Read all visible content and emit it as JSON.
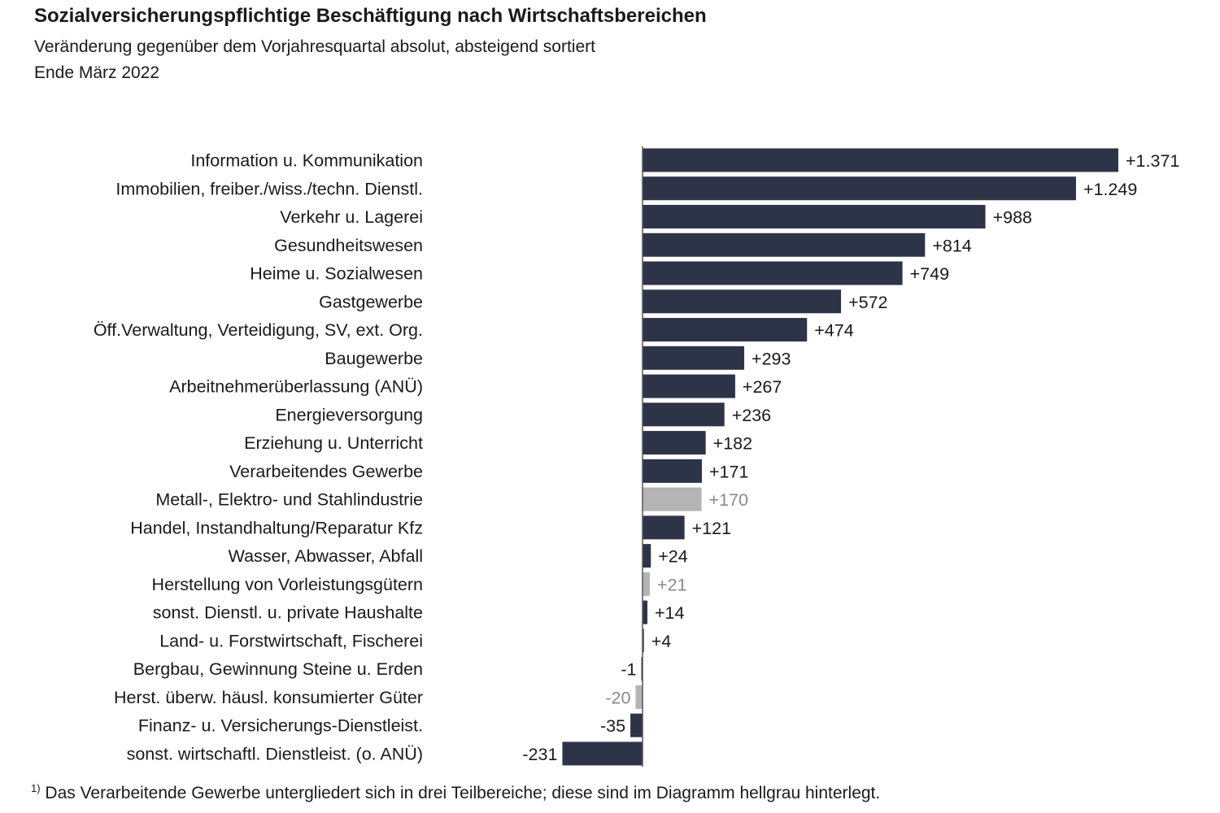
{
  "title": "Sozialversicherungspflichtige Beschäftigung nach Wirtschaftsbereichen",
  "subtitle": "Veränderung gegenüber dem Vorjahresquartal absolut, absteigend sortiert",
  "date": "Ende März 2022",
  "footnote_mark": "1)",
  "footnote": "Das Verarbeitende Gewerbe  untergliedert sich in drei  Teilbereiche; diese sind im Diagramm hellgrau hinterlegt.",
  "colors": {
    "main": "#2e3448",
    "sub": "#b4b4b4",
    "main_text": "#1a1a1a",
    "sub_text": "#8a8a8a"
  },
  "chart_data": {
    "type": "bar",
    "orientation": "horizontal",
    "categories": [
      "Information u. Kommunikation",
      "Immobilien, freiber./wiss./techn. Dienstl.",
      "Verkehr u. Lagerei",
      "Gesundheitswesen",
      "Heime u. Sozialwesen",
      "Gastgewerbe",
      "Öff.Verwaltung, Verteidigung, SV, ext. Org.",
      "Baugewerbe",
      "Arbeitnehmerüberlassung (ANÜ)",
      "Energieversorgung",
      "Erziehung u. Unterricht",
      "Verarbeitendes Gewerbe",
      "Metall-, Elektro- und Stahlindustrie",
      "Handel, Instandhaltung/Reparatur Kfz",
      "Wasser, Abwasser, Abfall",
      "Herstellung von Vorleistungsgütern",
      "sonst. Dienstl. u. private Haushalte",
      "Land- u. Forstwirtschaft, Fischerei",
      "Bergbau, Gewinnung Steine u. Erden",
      "Herst. überw. häusl. konsumierter Güter",
      "Finanz- u. Versicherungs-Dienstleist.",
      "sonst. wirtschaftl. Dienstleist. (o. ANÜ)"
    ],
    "values": [
      1371,
      1249,
      988,
      814,
      749,
      572,
      474,
      293,
      267,
      236,
      182,
      171,
      170,
      121,
      24,
      21,
      14,
      4,
      -1,
      -20,
      -35,
      -231
    ],
    "value_labels": [
      "+1.371",
      "+1.249",
      "+988",
      "+814",
      "+749",
      "+572",
      "+474",
      "+293",
      "+267",
      "+236",
      "+182",
      "+171",
      "+170",
      "+121",
      "+24",
      "+21",
      "+14",
      "+4",
      "-1",
      "-20",
      "-35",
      "-231"
    ],
    "subcategory": [
      false,
      false,
      false,
      false,
      false,
      false,
      false,
      false,
      false,
      false,
      false,
      false,
      true,
      false,
      false,
      true,
      false,
      false,
      false,
      true,
      false,
      false
    ],
    "xlim": [
      -231,
      1371
    ],
    "grid": false,
    "legend": "none"
  }
}
